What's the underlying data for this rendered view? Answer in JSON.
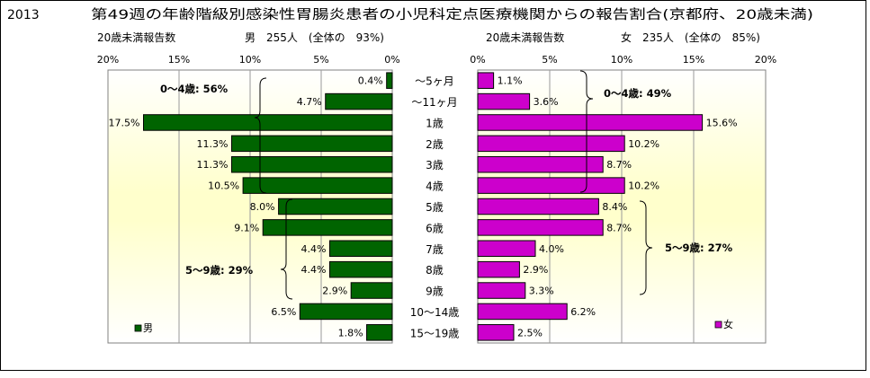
{
  "header": {
    "year": "2013",
    "title": "第49週の年齢階級別感染性胃腸炎患者の小児科定点医療機関からの報告割合(京都府、20歳未満)"
  },
  "chart_data": {
    "type": "bar",
    "categories": [
      "～5ヶ月",
      "～11ヶ月",
      "1歳",
      "2歳",
      "3歳",
      "4歳",
      "5歳",
      "6歳",
      "7歳",
      "8歳",
      "9歳",
      "10～14歳",
      "15～19歳"
    ],
    "left": {
      "header_label": "20歳未満報告数",
      "header_summary": "男　255人　(全体の　93%)",
      "legend": "男",
      "color": "#006400",
      "axis_ticks": [
        "20%",
        "15%",
        "10%",
        "5%",
        "0%"
      ],
      "xlim": [
        0,
        20
      ],
      "values": [
        0.4,
        4.7,
        17.5,
        11.3,
        11.3,
        10.5,
        8.0,
        9.1,
        4.4,
        4.4,
        2.9,
        6.5,
        1.8
      ],
      "labels": [
        "0.4%",
        "4.7%",
        "17.5%",
        "11.3%",
        "11.3%",
        "10.5%",
        "8.0%",
        "9.1%",
        "4.4%",
        "4.4%",
        "2.9%",
        "6.5%",
        "1.8%"
      ],
      "group_labels": [
        "0～4歳: 56%",
        "5～9歳: 29%"
      ]
    },
    "right": {
      "header_label": "20歳未満報告数",
      "header_summary": "女　235人　(全体の　85%)",
      "legend": "女",
      "color": "#cc00cc",
      "axis_ticks": [
        "0%",
        "5%",
        "10%",
        "15%",
        "20%"
      ],
      "xlim": [
        0,
        20
      ],
      "values": [
        1.1,
        3.6,
        15.6,
        10.2,
        8.7,
        10.2,
        8.4,
        8.7,
        4.0,
        2.9,
        3.3,
        6.2,
        2.5
      ],
      "labels": [
        "1.1%",
        "3.6%",
        "15.6%",
        "10.2%",
        "8.7%",
        "10.2%",
        "8.4%",
        "8.7%",
        "4.0%",
        "2.9%",
        "3.3%",
        "6.2%",
        "2.5%"
      ],
      "group_labels": [
        "0～4歳: 49%",
        "5～9歳: 27%"
      ]
    },
    "grid": true,
    "background": "yellow-gradient"
  }
}
